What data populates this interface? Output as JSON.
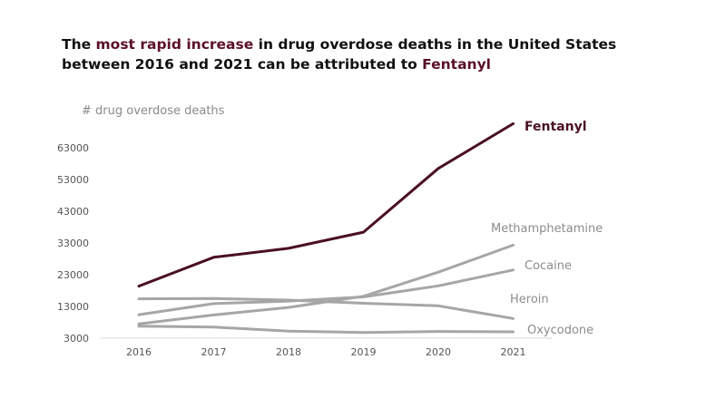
{
  "title": {
    "p1": "The ",
    "h1": "most rapid increase",
    "p2": " in drug overdose deaths in the United States",
    "p3": "between 2016 and 2021 can be attributed to ",
    "h2": "Fentanyl"
  },
  "chart_data": {
    "type": "line",
    "title": "The most rapid increase in drug overdose deaths in the United States between 2016 and 2021 can be attributed to Fentanyl",
    "ylabel": "# drug overdose deaths",
    "xlabel": "",
    "x": [
      "2016",
      "2017",
      "2018",
      "2019",
      "2020",
      "2021"
    ],
    "yticks": [
      "3000",
      "13000",
      "23000",
      "33000",
      "43000",
      "53000",
      "63000"
    ],
    "ylim": [
      3000,
      73000
    ],
    "grid": false,
    "series": [
      {
        "name": "Fentanyl",
        "color": "#4a0f25",
        "values": [
          19400,
          28500,
          31300,
          36400,
          56500,
          70600
        ]
      },
      {
        "name": "Methamphetamine",
        "color": "#a6a6a6",
        "values": [
          7500,
          10300,
          12700,
          16200,
          23800,
          32300
        ]
      },
      {
        "name": "Cocaine",
        "color": "#a6a6a6",
        "values": [
          10400,
          13900,
          14700,
          16000,
          19500,
          24500
        ]
      },
      {
        "name": "Heroin",
        "color": "#a6a6a6",
        "values": [
          15400,
          15500,
          15000,
          14000,
          13200,
          9200
        ]
      },
      {
        "name": "Oxycodone",
        "color": "#a6a6a6",
        "values": [
          6800,
          6500,
          5200,
          4800,
          5100,
          5000
        ]
      }
    ]
  }
}
